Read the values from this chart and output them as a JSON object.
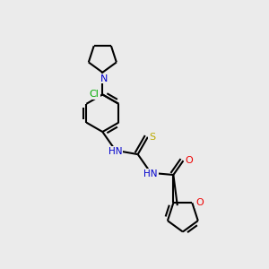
{
  "bg": "#ebebeb",
  "colors": {
    "bond": "#000000",
    "N": "#0000cc",
    "O": "#ee0000",
    "S": "#bbaa00",
    "Cl": "#00aa00"
  },
  "lw": 1.5,
  "fs": 7.5,
  "figsize": [
    3.0,
    3.0
  ],
  "dpi": 100,
  "xlim": [
    0,
    10
  ],
  "ylim": [
    0,
    10
  ]
}
